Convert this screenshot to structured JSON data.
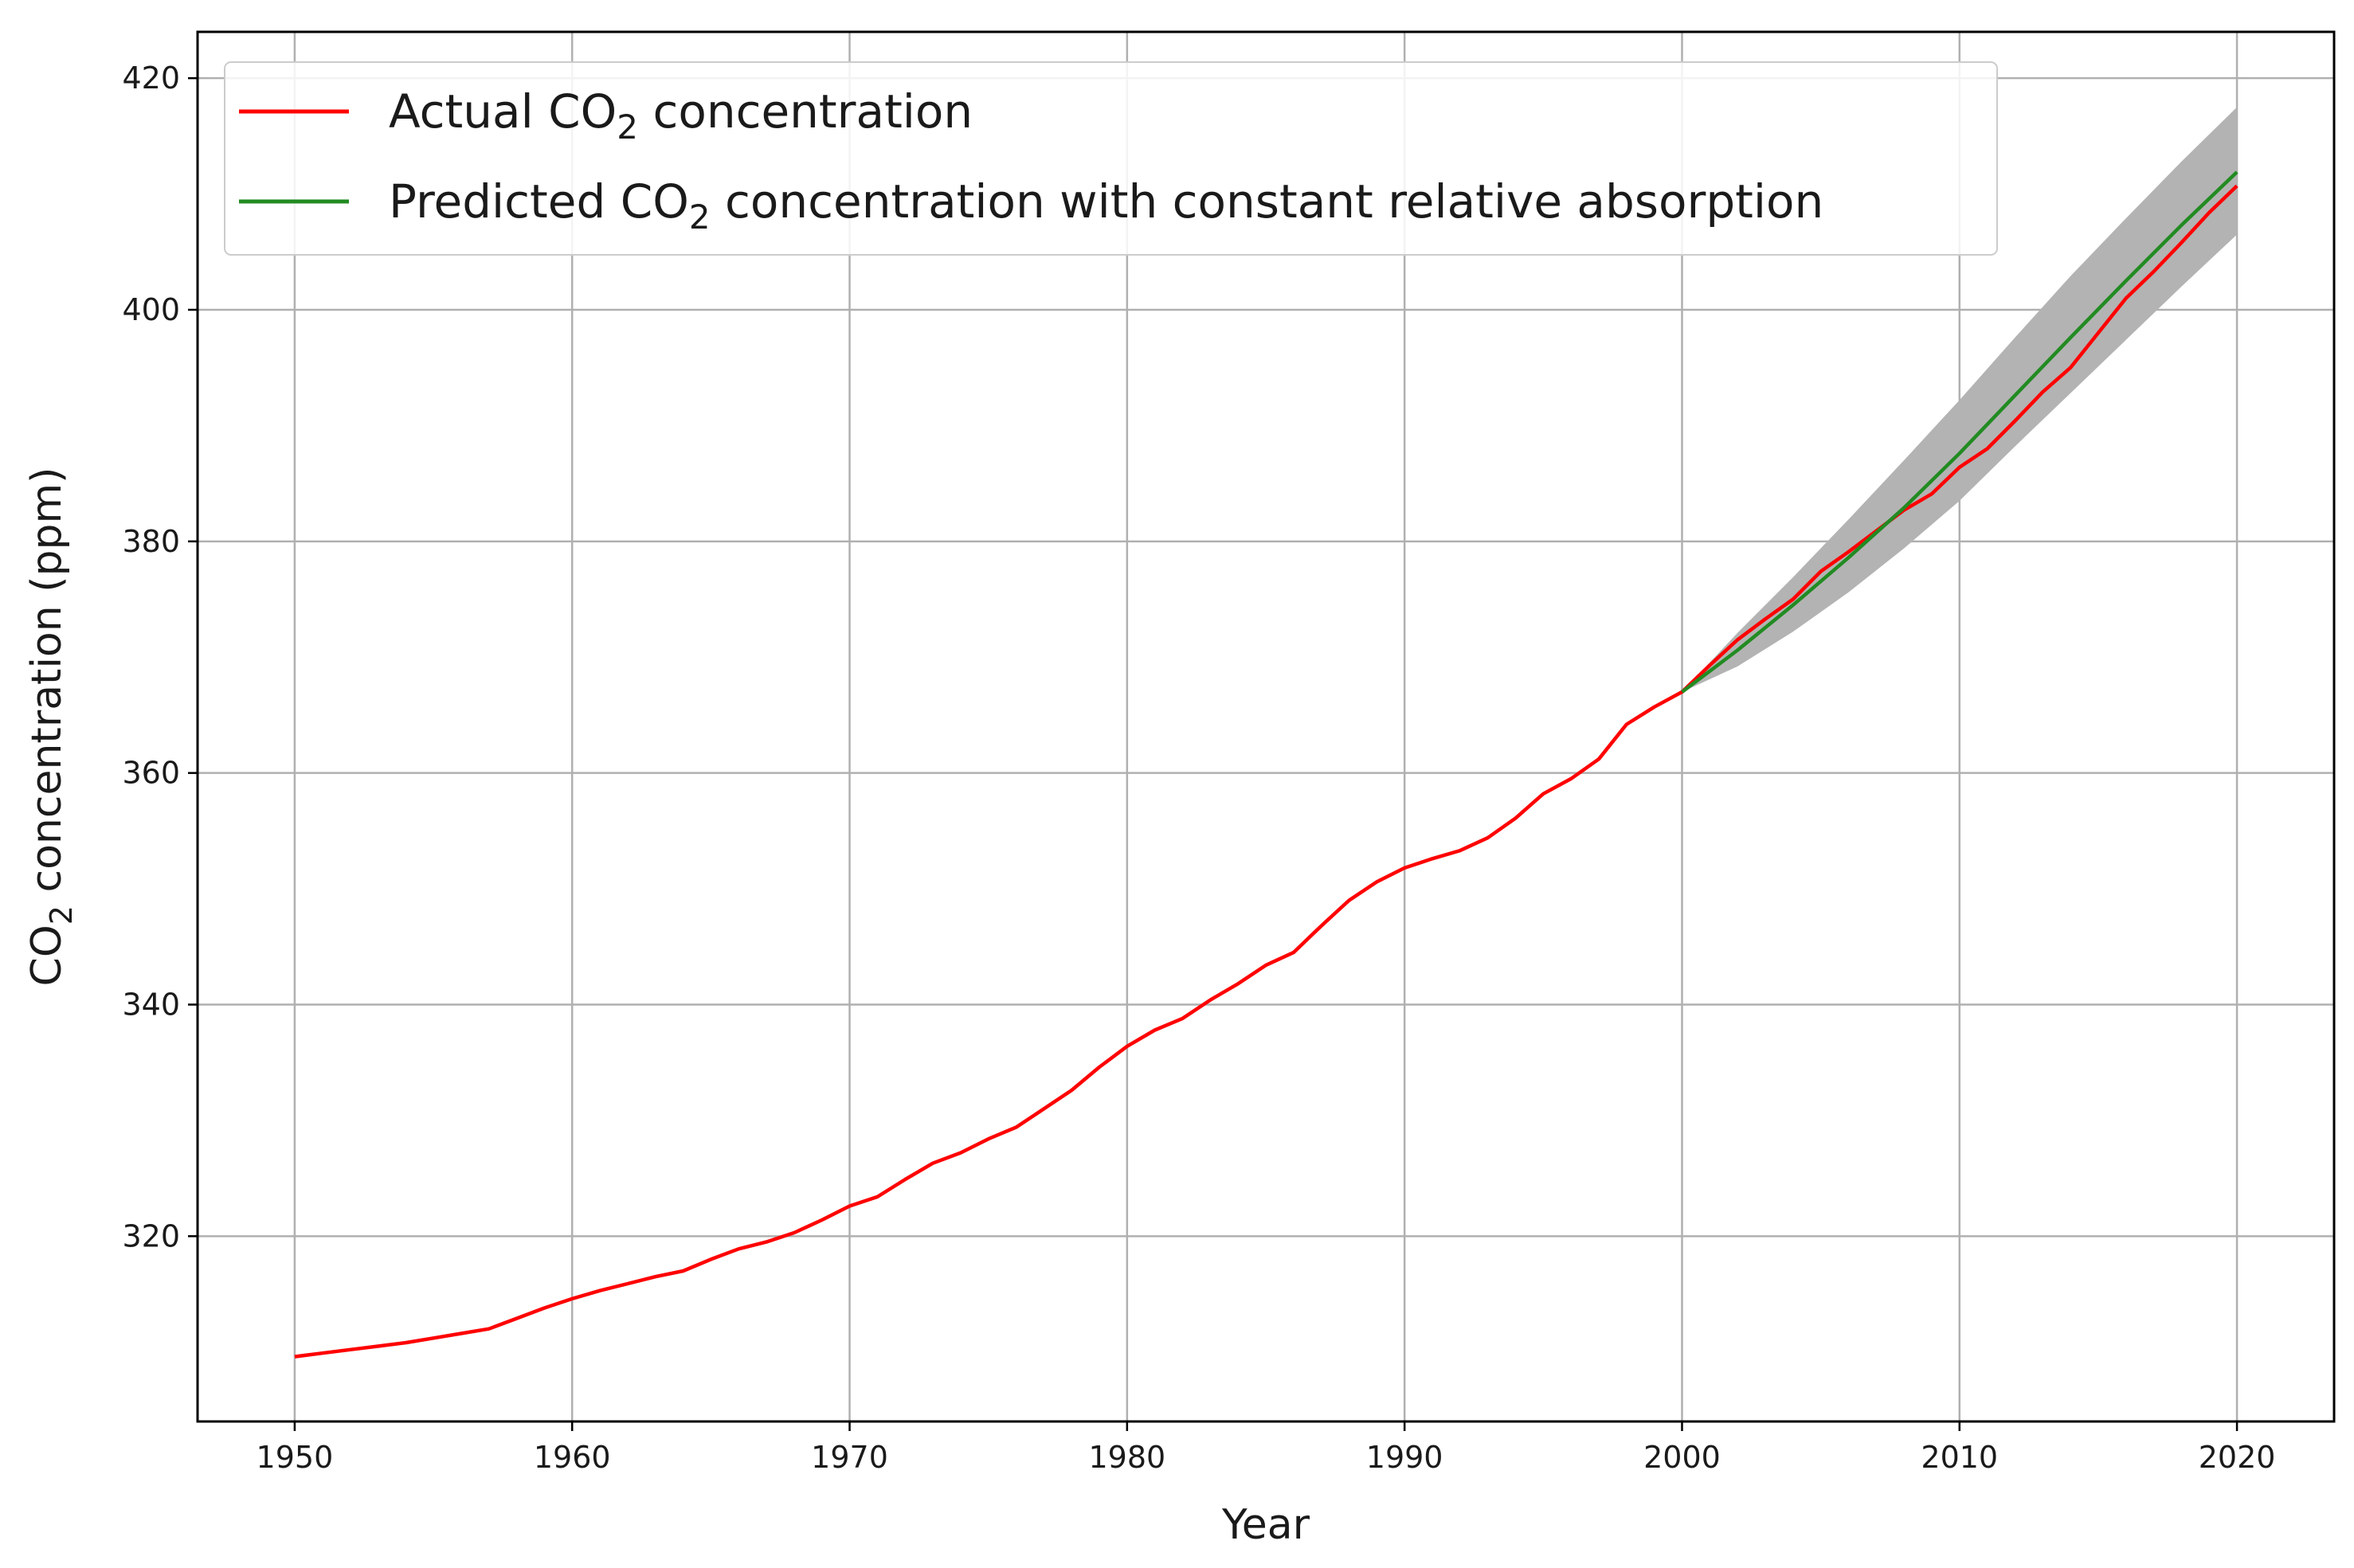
{
  "chart_data": {
    "type": "line",
    "xlabel": "Year",
    "ylabel": {
      "prefix": "CO",
      "sub": "2",
      "suffix": " concentration (ppm)"
    },
    "xlim": [
      1946.5,
      2023.5
    ],
    "ylim": [
      304,
      424
    ],
    "xticks": [
      1950,
      1960,
      1970,
      1980,
      1990,
      2000,
      2010,
      2020
    ],
    "yticks": [
      320,
      340,
      360,
      380,
      400,
      420
    ],
    "grid": true,
    "legend_position": "top-left",
    "series": [
      {
        "name": {
          "prefix": "Actual CO",
          "sub": "2",
          "suffix": " concentration"
        },
        "color": "#ff0000",
        "x": [
          1950,
          1951,
          1952,
          1953,
          1954,
          1955,
          1956,
          1957,
          1958,
          1959,
          1960,
          1961,
          1962,
          1963,
          1964,
          1965,
          1966,
          1967,
          1968,
          1969,
          1970,
          1971,
          1972,
          1973,
          1974,
          1975,
          1976,
          1977,
          1978,
          1979,
          1980,
          1981,
          1982,
          1983,
          1984,
          1985,
          1986,
          1987,
          1988,
          1989,
          1990,
          1991,
          1992,
          1993,
          1994,
          1995,
          1996,
          1997,
          1998,
          1999,
          2000,
          2001,
          2002,
          2003,
          2004,
          2005,
          2006,
          2007,
          2008,
          2009,
          2010,
          2011,
          2012,
          2013,
          2014,
          2015,
          2016,
          2017,
          2018,
          2019,
          2020
        ],
        "y": [
          309.6,
          309.9,
          310.2,
          310.5,
          310.8,
          311.2,
          311.6,
          312.0,
          312.9,
          313.8,
          314.6,
          315.3,
          315.9,
          316.5,
          317.0,
          318.0,
          318.9,
          319.5,
          320.3,
          321.4,
          322.6,
          323.4,
          324.9,
          326.3,
          327.2,
          328.4,
          329.4,
          331.0,
          332.6,
          334.6,
          336.4,
          337.8,
          338.8,
          340.4,
          341.8,
          343.4,
          344.5,
          346.8,
          349.0,
          350.6,
          351.8,
          352.6,
          353.3,
          354.4,
          356.1,
          358.2,
          359.5,
          361.2,
          364.2,
          365.7,
          367.0,
          369.3,
          371.5,
          373.3,
          375.0,
          377.4,
          379.1,
          380.9,
          382.7,
          384.1,
          386.4,
          388.0,
          390.4,
          392.9,
          395.0,
          398.0,
          401.0,
          403.3,
          405.8,
          408.4,
          410.7
        ]
      },
      {
        "name": {
          "prefix": "Predicted CO",
          "sub": "2",
          "suffix": " concentration with constant relative absorption"
        },
        "color": "#228b22",
        "x": [
          2000,
          2002,
          2004,
          2006,
          2008,
          2010,
          2012,
          2014,
          2016,
          2018,
          2020
        ],
        "y": [
          367.0,
          370.6,
          374.5,
          378.6,
          382.9,
          387.6,
          392.6,
          397.6,
          402.5,
          407.3,
          411.9
        ],
        "band_color": "#b3b3b3",
        "band_lower": [
          367.0,
          369.2,
          372.2,
          375.6,
          379.4,
          383.5,
          388.2,
          392.8,
          397.4,
          402.0,
          406.5
        ],
        "band_upper": [
          367.0,
          372.1,
          376.9,
          381.9,
          387.0,
          392.2,
          397.6,
          402.9,
          407.9,
          412.8,
          417.5
        ]
      }
    ]
  }
}
